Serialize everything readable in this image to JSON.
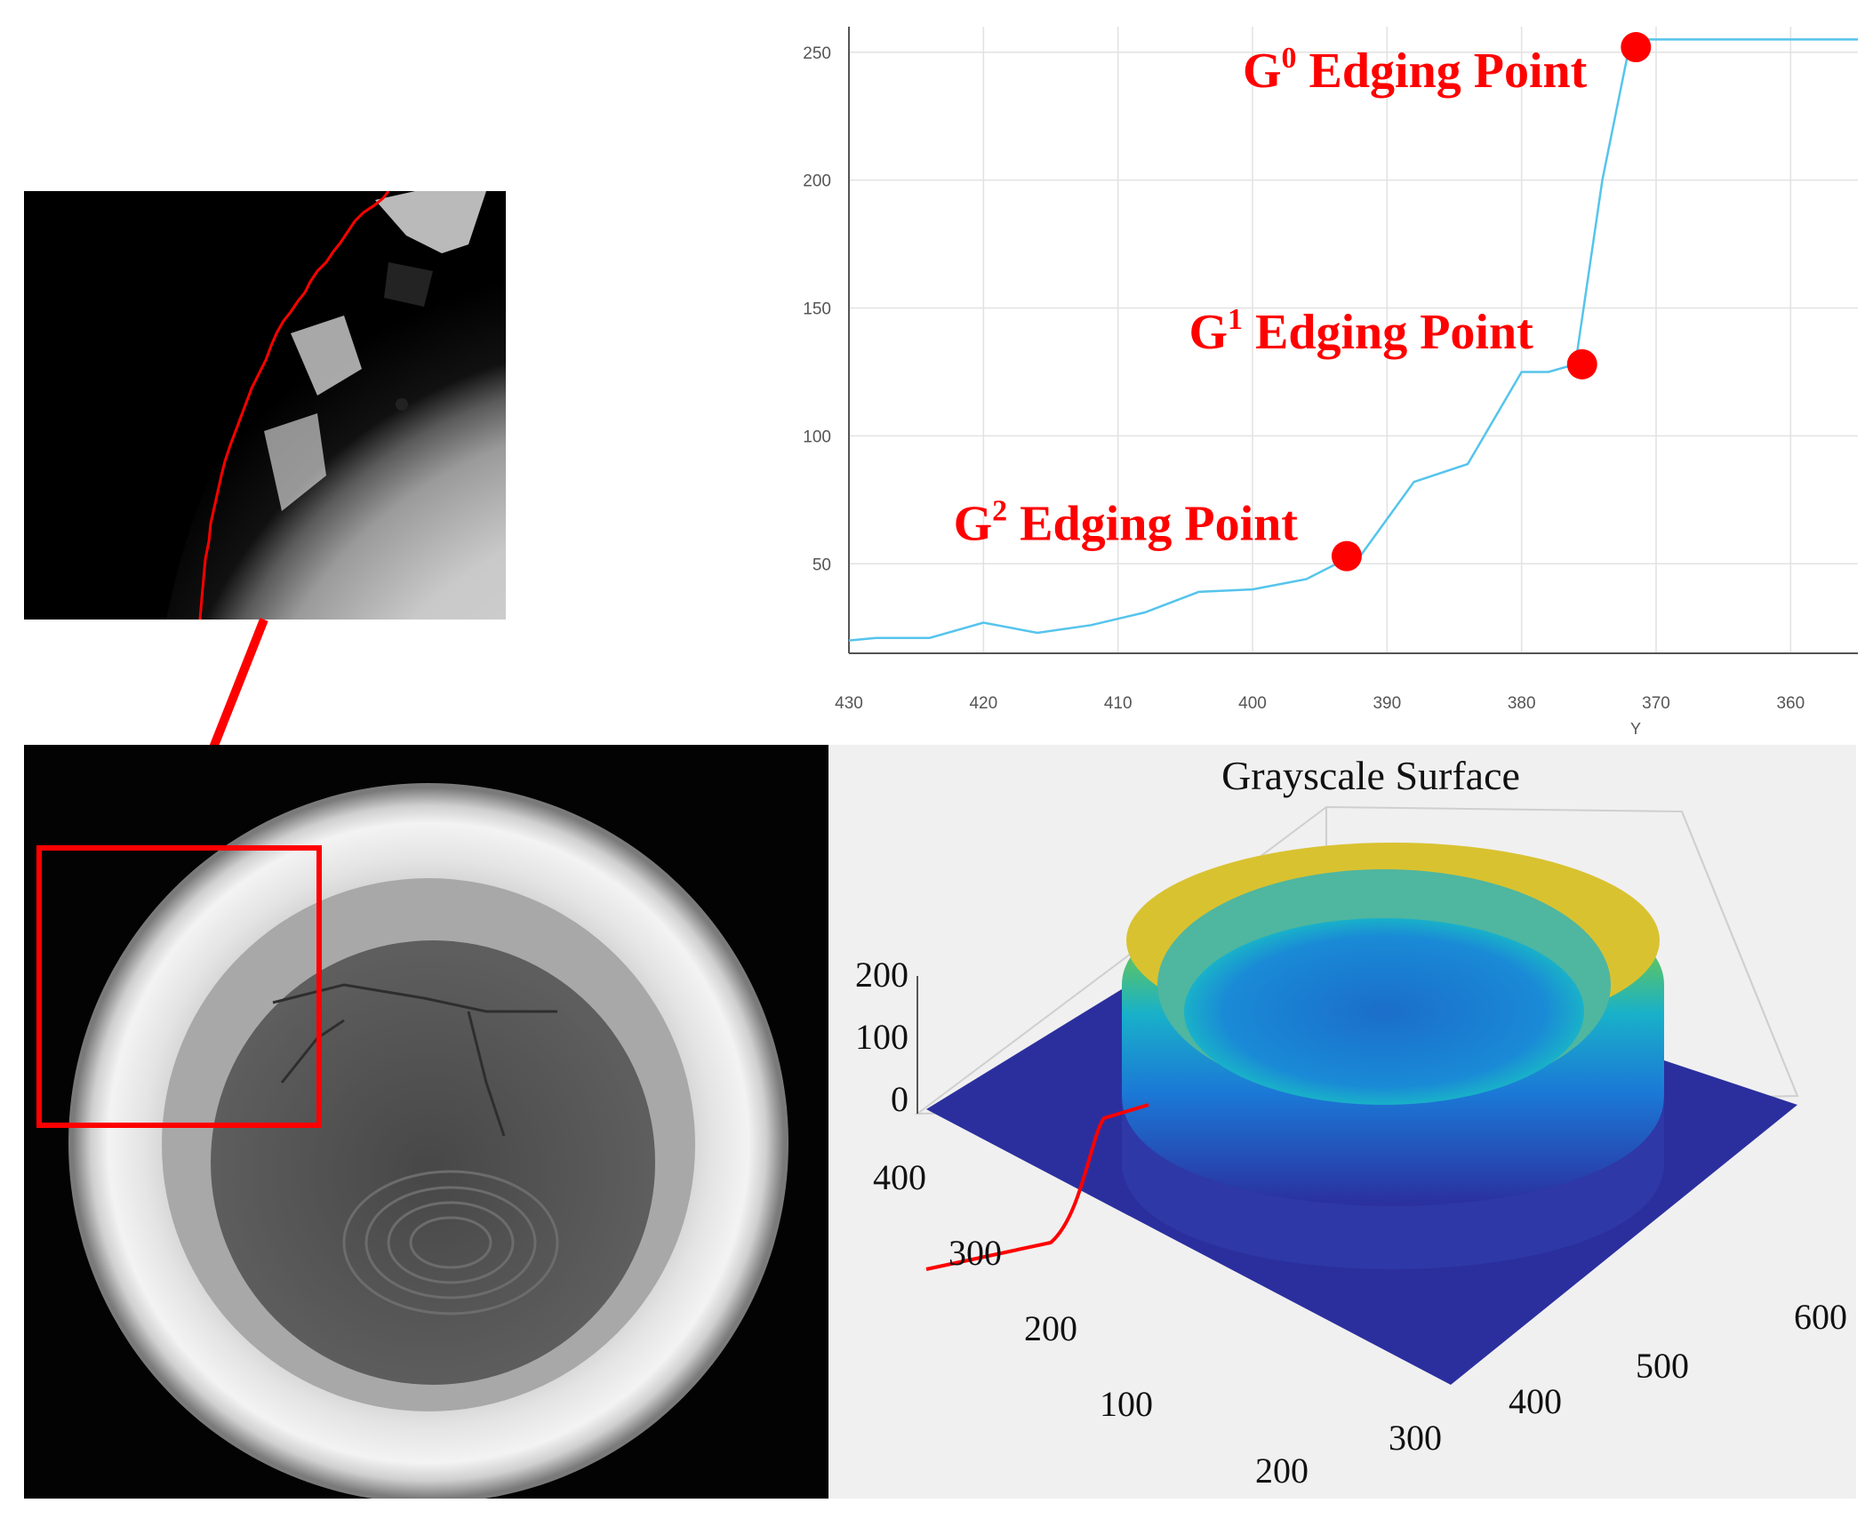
{
  "chart_data": [
    {
      "type": "line",
      "xlabel": "Y",
      "ylabel": "",
      "x_reversed": true,
      "xlim": [
        430,
        355
      ],
      "ylim": [
        15,
        260
      ],
      "x_ticks": [
        "430",
        "420",
        "410",
        "400",
        "390",
        "380",
        "370",
        "360"
      ],
      "y_ticks": [
        "50",
        "100",
        "150",
        "200",
        "250"
      ],
      "grid": true,
      "line_color": "#55c4ec",
      "marker_color": "#ff0000",
      "series": [
        {
          "x": [
            430,
            428,
            424,
            420,
            416,
            412,
            408,
            404,
            400,
            396,
            393,
            392,
            388,
            384,
            380,
            378,
            376,
            374,
            372,
            371,
            368,
            364,
            360,
            355
          ],
          "y": [
            20,
            21,
            21,
            27,
            23,
            26,
            31,
            39,
            40,
            44,
            52,
            53,
            82,
            89,
            125,
            125,
            128,
            200,
            252,
            255,
            255,
            255,
            255,
            255
          ]
        }
      ],
      "annotations": [
        {
          "sup": "0",
          "rest": " Edging Point",
          "x": 371.5,
          "y": 252
        },
        {
          "sup": "1",
          "rest": " Edging Point",
          "x": 375.5,
          "y": 128
        },
        {
          "sup": "2",
          "rest": " Edging Point",
          "x": 393,
          "y": 53
        }
      ],
      "annotation_prefix": "G"
    },
    {
      "type": "heatmap",
      "title": "Grayscale Surface",
      "z_ticks": [
        "200",
        "100",
        "0"
      ],
      "y_ticks": [
        "400",
        "300",
        "200",
        "100"
      ],
      "x_ticks": [
        "200",
        "300",
        "400",
        "500",
        "600"
      ],
      "colormap": [
        "#2b2f9e",
        "#1b78d6",
        "#19b1c9",
        "#5cc463",
        "#e0c22d",
        "#f4e22a"
      ]
    }
  ],
  "photo": {
    "highlight_color": "#ff0000",
    "edge_color": "#ff0000"
  }
}
